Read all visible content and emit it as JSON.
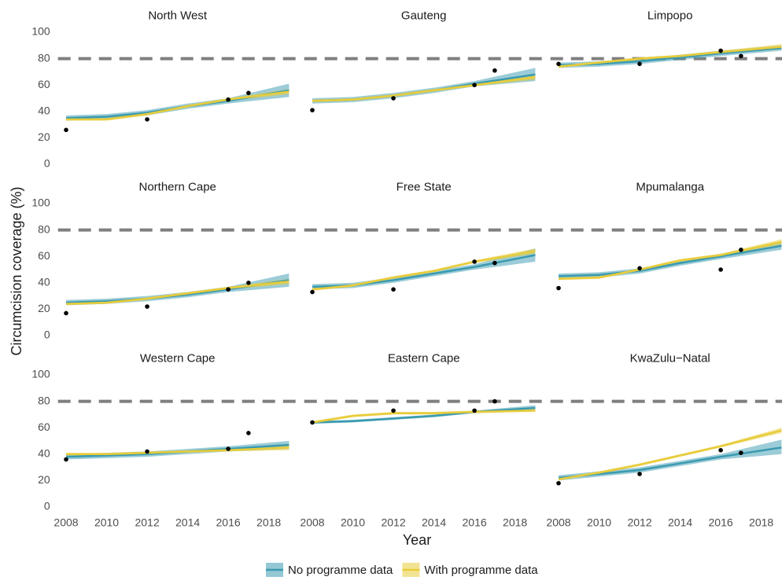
{
  "ylabel": "Circumcision coverage (%)",
  "xlabel": "Year",
  "chart_data": [
    {
      "type": "line",
      "title": "North West",
      "x": [
        2008,
        2010,
        2012,
        2014,
        2016,
        2019
      ],
      "xlim": [
        2007.6,
        2019.4
      ],
      "ylim": [
        -4,
        104
      ],
      "yticks": [
        0,
        20,
        40,
        60,
        80,
        100
      ],
      "hline": 80,
      "series": [
        {
          "name": "No programme data",
          "color": "#3a9ab0",
          "values": [
            35,
            36,
            39,
            44,
            48,
            56
          ],
          "lower": [
            33,
            34,
            37,
            42,
            46,
            51
          ],
          "upper": [
            37,
            38,
            41,
            46,
            50,
            61
          ]
        },
        {
          "name": "With programme data",
          "color": "#e8cc3a",
          "values": [
            34,
            34,
            38,
            44,
            49,
            55
          ],
          "lower": [
            33,
            33,
            37,
            43,
            48,
            53
          ],
          "upper": [
            35,
            35,
            39,
            45,
            50,
            57
          ]
        }
      ],
      "points": {
        "x": [
          2008,
          2012,
          2016,
          2017
        ],
        "values": [
          26,
          34,
          49,
          54
        ]
      }
    },
    {
      "type": "line",
      "title": "Gauteng",
      "x": [
        2008,
        2010,
        2012,
        2014,
        2016,
        2019
      ],
      "xlim": [
        2007.6,
        2019.4
      ],
      "ylim": [
        -4,
        104
      ],
      "hline": 80,
      "series": [
        {
          "name": "No programme data",
          "color": "#3a9ab0",
          "values": [
            48,
            49,
            52,
            56,
            61,
            68
          ],
          "lower": [
            46,
            47,
            50,
            54,
            59,
            63
          ],
          "upper": [
            50,
            51,
            54,
            58,
            63,
            73
          ]
        },
        {
          "name": "With programme data",
          "color": "#e8cc3a",
          "values": [
            48,
            49,
            52,
            56,
            60,
            66
          ],
          "lower": [
            47,
            48,
            51,
            55,
            59,
            64
          ],
          "upper": [
            49,
            50,
            53,
            57,
            61,
            68
          ]
        }
      ],
      "points": {
        "x": [
          2008,
          2012,
          2016,
          2017
        ],
        "values": [
          41,
          50,
          60,
          71
        ]
      }
    },
    {
      "type": "line",
      "title": "Limpopo",
      "x": [
        2008,
        2010,
        2012,
        2014,
        2016,
        2019
      ],
      "xlim": [
        2007.6,
        2019.4
      ],
      "ylim": [
        -4,
        104
      ],
      "hline": 80,
      "series": [
        {
          "name": "No programme data",
          "color": "#3a9ab0",
          "values": [
            75,
            76,
            78,
            81,
            84,
            88
          ],
          "lower": [
            73,
            74,
            76,
            79,
            82,
            86
          ],
          "upper": [
            77,
            78,
            80,
            83,
            86,
            90
          ]
        },
        {
          "name": "With programme data",
          "color": "#e8cc3a",
          "values": [
            74,
            77,
            80,
            82,
            85,
            89
          ],
          "lower": [
            73,
            76,
            79,
            81,
            84,
            87
          ],
          "upper": [
            75,
            78,
            81,
            83,
            86,
            91
          ]
        }
      ],
      "points": {
        "x": [
          2008,
          2012,
          2016,
          2017
        ],
        "values": [
          76,
          76,
          86,
          82
        ]
      }
    },
    {
      "type": "line",
      "title": "Northern Cape",
      "x": [
        2008,
        2010,
        2012,
        2014,
        2016,
        2019
      ],
      "xlim": [
        2007.6,
        2019.4
      ],
      "ylim": [
        -4,
        104
      ],
      "yticks": [
        0,
        20,
        40,
        60,
        80,
        100
      ],
      "hline": 80,
      "series": [
        {
          "name": "No programme data",
          "color": "#3a9ab0",
          "values": [
            25,
            26,
            28,
            31,
            35,
            42
          ],
          "lower": [
            23,
            24,
            26,
            29,
            33,
            37
          ],
          "upper": [
            27,
            28,
            30,
            33,
            37,
            47
          ]
        },
        {
          "name": "With programme data",
          "color": "#e8cc3a",
          "values": [
            24,
            25,
            28,
            32,
            36,
            41
          ],
          "lower": [
            23,
            24,
            27,
            31,
            35,
            39
          ],
          "upper": [
            25,
            26,
            29,
            33,
            37,
            43
          ]
        }
      ],
      "points": {
        "x": [
          2008,
          2012,
          2016,
          2017
        ],
        "values": [
          17,
          22,
          35,
          40
        ]
      }
    },
    {
      "type": "line",
      "title": "Free State",
      "x": [
        2008,
        2010,
        2012,
        2014,
        2016,
        2019
      ],
      "xlim": [
        2007.6,
        2019.4
      ],
      "ylim": [
        -4,
        104
      ],
      "hline": 80,
      "series": [
        {
          "name": "No programme data",
          "color": "#3a9ab0",
          "values": [
            37,
            38,
            42,
            47,
            52,
            61
          ],
          "lower": [
            35,
            36,
            40,
            45,
            50,
            56
          ],
          "upper": [
            39,
            40,
            44,
            49,
            54,
            66
          ]
        },
        {
          "name": "With programme data",
          "color": "#e8cc3a",
          "values": [
            35,
            38,
            44,
            49,
            56,
            64
          ],
          "lower": [
            34,
            37,
            43,
            48,
            55,
            62
          ],
          "upper": [
            36,
            39,
            45,
            50,
            57,
            66
          ]
        }
      ],
      "points": {
        "x": [
          2008,
          2012,
          2016,
          2017
        ],
        "values": [
          33,
          35,
          56,
          55
        ]
      }
    },
    {
      "type": "line",
      "title": "Mpumalanga",
      "x": [
        2008,
        2010,
        2012,
        2014,
        2016,
        2019
      ],
      "xlim": [
        2007.6,
        2019.4
      ],
      "ylim": [
        -4,
        104
      ],
      "hline": 80,
      "series": [
        {
          "name": "No programme data",
          "color": "#3a9ab0",
          "values": [
            45,
            46,
            49,
            55,
            60,
            68
          ],
          "lower": [
            43,
            44,
            47,
            53,
            58,
            65
          ],
          "upper": [
            47,
            48,
            51,
            57,
            62,
            71
          ]
        },
        {
          "name": "With programme data",
          "color": "#e8cc3a",
          "values": [
            43,
            44,
            50,
            57,
            61,
            71
          ],
          "lower": [
            42,
            43,
            49,
            56,
            60,
            69
          ],
          "upper": [
            44,
            45,
            51,
            58,
            62,
            73
          ]
        }
      ],
      "points": {
        "x": [
          2008,
          2012,
          2016,
          2017
        ],
        "values": [
          36,
          51,
          50,
          65
        ]
      }
    },
    {
      "type": "line",
      "title": "Western Cape",
      "x": [
        2008,
        2010,
        2012,
        2014,
        2016,
        2019
      ],
      "xlim": [
        2007.6,
        2019.4
      ],
      "ylim": [
        -4,
        104
      ],
      "yticks": [
        0,
        20,
        40,
        60,
        80,
        100
      ],
      "xticks": [
        2008,
        2010,
        2012,
        2014,
        2016,
        2018
      ],
      "hline": 80,
      "series": [
        {
          "name": "No programme data",
          "color": "#3a9ab0",
          "values": [
            38,
            39,
            40,
            42,
            44,
            47
          ],
          "lower": [
            36,
            37,
            38,
            40,
            42,
            44
          ],
          "upper": [
            40,
            41,
            42,
            44,
            46,
            50
          ]
        },
        {
          "name": "With programme data",
          "color": "#e8cc3a",
          "values": [
            40,
            40,
            41,
            42,
            43,
            45
          ],
          "lower": [
            39,
            39,
            40,
            41,
            42,
            43
          ],
          "upper": [
            41,
            41,
            42,
            43,
            44,
            47
          ]
        }
      ],
      "points": {
        "x": [
          2008,
          2012,
          2016,
          2017
        ],
        "values": [
          36,
          42,
          44,
          56
        ]
      }
    },
    {
      "type": "line",
      "title": "Eastern Cape",
      "x": [
        2008,
        2010,
        2012,
        2014,
        2016,
        2019
      ],
      "xlim": [
        2007.6,
        2019.4
      ],
      "ylim": [
        -4,
        104
      ],
      "xticks": [
        2008,
        2010,
        2012,
        2014,
        2016,
        2018
      ],
      "hline": 80,
      "series": [
        {
          "name": "No programme data",
          "color": "#3a9ab0",
          "values": [
            64,
            65,
            67,
            69,
            72,
            75
          ],
          "lower": [
            63,
            64,
            66,
            68,
            71,
            73
          ],
          "upper": [
            65,
            66,
            68,
            70,
            73,
            77
          ]
        },
        {
          "name": "With programme data",
          "color": "#e8cc3a",
          "values": [
            64,
            69,
            71,
            71,
            72,
            73
          ],
          "lower": [
            63,
            68,
            70,
            70,
            71,
            72
          ],
          "upper": [
            65,
            70,
            72,
            72,
            73,
            75
          ]
        }
      ],
      "points": {
        "x": [
          2008,
          2012,
          2016,
          2017
        ],
        "values": [
          64,
          73,
          73,
          80
        ]
      }
    },
    {
      "type": "line",
      "title": "KwaZulu−Natal",
      "x": [
        2008,
        2010,
        2012,
        2014,
        2016,
        2019
      ],
      "xlim": [
        2007.6,
        2019.4
      ],
      "ylim": [
        -4,
        104
      ],
      "xticks": [
        2008,
        2010,
        2012,
        2014,
        2016,
        2018
      ],
      "hline": 80,
      "series": [
        {
          "name": "No programme data",
          "color": "#3a9ab0",
          "values": [
            22,
            25,
            28,
            33,
            38,
            45
          ],
          "lower": [
            20,
            23,
            26,
            31,
            36,
            40
          ],
          "upper": [
            24,
            27,
            30,
            35,
            40,
            51
          ]
        },
        {
          "name": "With programme data",
          "color": "#e8cc3a",
          "values": [
            21,
            26,
            32,
            39,
            46,
            58
          ],
          "lower": [
            20,
            25,
            31,
            38,
            45,
            56
          ],
          "upper": [
            22,
            27,
            33,
            40,
            47,
            60
          ]
        }
      ],
      "points": {
        "x": [
          2008,
          2012,
          2016,
          2017
        ],
        "values": [
          18,
          25,
          43,
          41
        ]
      }
    }
  ]
}
